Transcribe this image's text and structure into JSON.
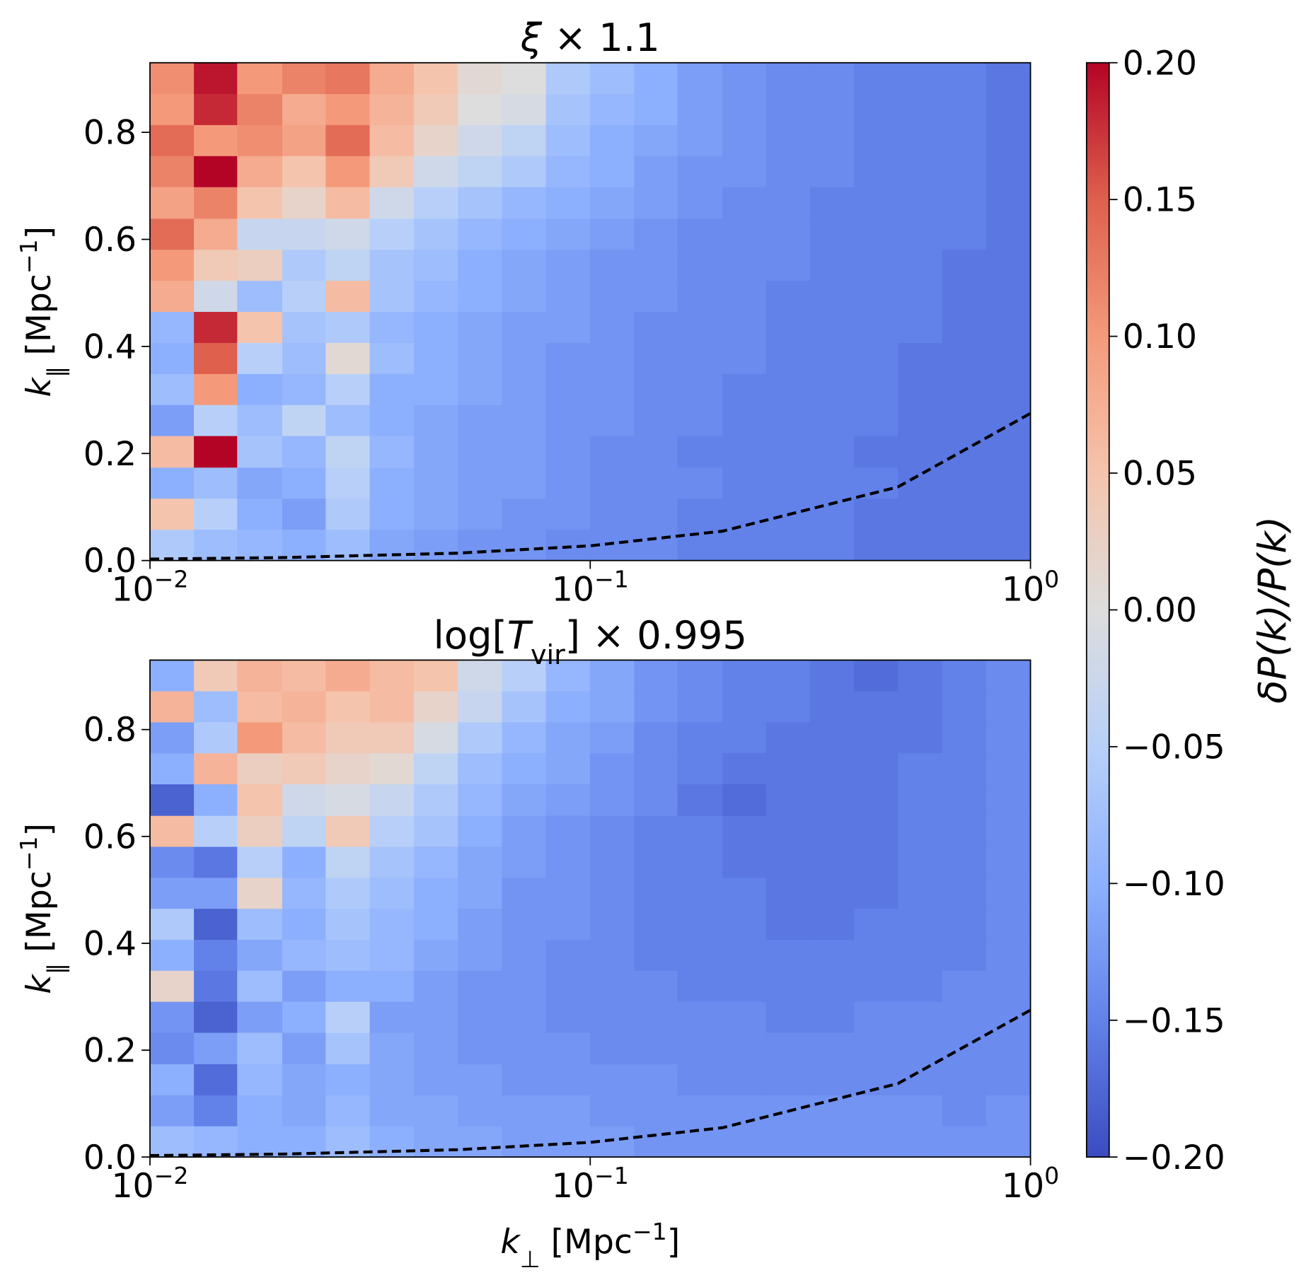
{
  "chart_data": [
    {
      "type": "heatmap",
      "title": {
        "var": "ξ",
        "post": " × 1.1"
      },
      "y_label": {
        "var": "k",
        "sub": "∥",
        "unit": " [Mpc",
        "exp": "−1",
        "close": "]"
      },
      "xlim": [
        0.01,
        1
      ],
      "ylim": [
        0,
        0.93
      ],
      "log_x": true,
      "xticks": [
        {
          "value": 0.01,
          "base": "10",
          "exponent": "−2"
        },
        {
          "value": 0.1,
          "base": "10",
          "exponent": "−1"
        },
        {
          "value": 1,
          "base": "10",
          "exponent": "0"
        }
      ],
      "yticks": [
        {
          "value": 0,
          "label": "0.0"
        },
        0.2,
        0.4,
        0.6,
        0.8
      ],
      "x_bins": [
        0.01,
        0.0126,
        0.0158,
        0.02,
        0.0251,
        0.0316,
        0.0398,
        0.0501,
        0.0631,
        0.0794,
        0.1,
        0.126,
        0.158,
        0.2,
        0.251,
        0.316,
        0.398,
        0.501,
        0.631,
        0.794,
        1
      ],
      "y_bins": [
        0,
        0.058,
        0.116,
        0.174,
        0.233,
        0.291,
        0.349,
        0.407,
        0.465,
        0.523,
        0.581,
        0.639,
        0.698,
        0.756,
        0.814,
        0.872,
        0.93
      ],
      "z": [
        [
          -0.06,
          -0.08,
          -0.09,
          -0.1,
          -0.08,
          -0.11,
          -0.12,
          -0.13,
          -0.13,
          -0.14,
          -0.14,
          -0.14,
          -0.15,
          -0.15,
          -0.15,
          -0.15,
          -0.16,
          -0.16,
          -0.16,
          -0.16
        ],
        [
          0.05,
          -0.05,
          -0.1,
          -0.12,
          -0.06,
          -0.1,
          -0.11,
          -0.12,
          -0.13,
          -0.13,
          -0.14,
          -0.14,
          -0.15,
          -0.15,
          -0.15,
          -0.15,
          -0.16,
          -0.16,
          -0.16,
          -0.16
        ],
        [
          -0.1,
          -0.08,
          -0.11,
          -0.1,
          -0.05,
          -0.1,
          -0.11,
          -0.12,
          -0.12,
          -0.13,
          -0.14,
          -0.14,
          -0.14,
          -0.15,
          -0.15,
          -0.15,
          -0.15,
          -0.16,
          -0.16,
          -0.16
        ],
        [
          0.06,
          0.2,
          -0.07,
          -0.09,
          -0.04,
          -0.09,
          -0.11,
          -0.12,
          -0.12,
          -0.13,
          -0.14,
          -0.14,
          -0.15,
          -0.15,
          -0.15,
          -0.15,
          -0.16,
          -0.16,
          -0.16,
          -0.16
        ],
        [
          -0.12,
          -0.05,
          -0.08,
          -0.04,
          -0.08,
          -0.1,
          -0.11,
          -0.12,
          -0.12,
          -0.13,
          -0.13,
          -0.14,
          -0.14,
          -0.15,
          -0.15,
          -0.15,
          -0.15,
          -0.16,
          -0.16,
          -0.16
        ],
        [
          -0.08,
          0.1,
          -0.1,
          -0.09,
          -0.05,
          -0.1,
          -0.1,
          -0.11,
          -0.12,
          -0.13,
          -0.13,
          -0.14,
          -0.14,
          -0.15,
          -0.15,
          -0.15,
          -0.15,
          -0.16,
          -0.16,
          -0.16
        ],
        [
          -0.1,
          0.15,
          -0.05,
          -0.08,
          0.01,
          -0.08,
          -0.1,
          -0.11,
          -0.12,
          -0.13,
          -0.13,
          -0.14,
          -0.14,
          -0.14,
          -0.15,
          -0.15,
          -0.15,
          -0.16,
          -0.16,
          -0.16
        ],
        [
          -0.09,
          0.18,
          0.05,
          -0.07,
          -0.06,
          -0.09,
          -0.1,
          -0.11,
          -0.12,
          -0.12,
          -0.13,
          -0.14,
          -0.14,
          -0.14,
          -0.15,
          -0.15,
          -0.15,
          -0.15,
          -0.16,
          -0.16
        ],
        [
          0.08,
          -0.02,
          -0.08,
          -0.05,
          0.06,
          -0.07,
          -0.09,
          -0.1,
          -0.11,
          -0.12,
          -0.13,
          -0.13,
          -0.14,
          -0.14,
          -0.15,
          -0.15,
          -0.15,
          -0.15,
          -0.16,
          -0.16
        ],
        [
          0.1,
          0.04,
          0.03,
          -0.06,
          -0.04,
          -0.07,
          -0.08,
          -0.1,
          -0.11,
          -0.12,
          -0.13,
          -0.13,
          -0.14,
          -0.14,
          -0.14,
          -0.15,
          -0.15,
          -0.15,
          -0.16,
          -0.16
        ],
        [
          0.14,
          0.08,
          -0.03,
          -0.03,
          -0.02,
          -0.05,
          -0.07,
          -0.09,
          -0.1,
          -0.11,
          -0.12,
          -0.13,
          -0.14,
          -0.14,
          -0.14,
          -0.15,
          -0.15,
          -0.15,
          -0.15,
          -0.16
        ],
        [
          0.09,
          0.12,
          0.05,
          0.02,
          0.06,
          -0.02,
          -0.05,
          -0.07,
          -0.09,
          -0.1,
          -0.11,
          -0.12,
          -0.13,
          -0.14,
          -0.14,
          -0.15,
          -0.15,
          -0.15,
          -0.15,
          -0.16
        ],
        [
          0.12,
          0.2,
          0.08,
          0.05,
          0.1,
          0.04,
          -0.02,
          -0.04,
          -0.06,
          -0.09,
          -0.1,
          -0.12,
          -0.13,
          -0.13,
          -0.14,
          -0.14,
          -0.15,
          -0.15,
          -0.15,
          -0.16
        ],
        [
          0.14,
          0.1,
          0.11,
          0.09,
          0.14,
          0.06,
          0.02,
          -0.02,
          -0.04,
          -0.08,
          -0.1,
          -0.11,
          -0.12,
          -0.13,
          -0.14,
          -0.14,
          -0.15,
          -0.15,
          -0.15,
          -0.16
        ],
        [
          0.1,
          0.18,
          0.12,
          0.08,
          0.1,
          0.07,
          0.04,
          0,
          -0.01,
          -0.07,
          -0.09,
          -0.1,
          -0.12,
          -0.13,
          -0.14,
          -0.14,
          -0.15,
          -0.15,
          -0.15,
          -0.16
        ],
        [
          0.11,
          0.19,
          0.1,
          0.12,
          0.13,
          0.08,
          0.05,
          0.01,
          0,
          -0.06,
          -0.08,
          -0.1,
          -0.12,
          -0.13,
          -0.14,
          -0.14,
          -0.15,
          -0.15,
          -0.15,
          -0.16
        ]
      ],
      "line": {
        "x": [
          0.01,
          0.02,
          0.05,
          0.1,
          0.2,
          0.5,
          1
        ],
        "values": [
          0.00275,
          0.0055,
          0.01375,
          0.0275,
          0.055,
          0.1375,
          0.275
        ],
        "color": "#000000",
        "style": "dashed"
      }
    },
    {
      "type": "heatmap",
      "title": {
        "pre": "log[",
        "var": "T",
        "sub": "vir",
        "post": "] × 0.995"
      },
      "x_label": {
        "var": "k",
        "sub": "⊥",
        "unit": " [Mpc",
        "exp": "−1",
        "close": "]"
      },
      "y_label": {
        "var": "k",
        "sub": "∥",
        "unit": " [Mpc",
        "exp": "−1",
        "close": "]"
      },
      "xlim": [
        0.01,
        1
      ],
      "ylim": [
        0,
        0.93
      ],
      "log_x": true,
      "xticks": [
        {
          "value": 0.01,
          "base": "10",
          "exponent": "−2"
        },
        {
          "value": 0.1,
          "base": "10",
          "exponent": "−1"
        },
        {
          "value": 1,
          "base": "10",
          "exponent": "0"
        }
      ],
      "yticks": [
        {
          "value": 0,
          "label": "0.0"
        },
        0.2,
        0.4,
        0.6,
        0.8
      ],
      "x_bins": [
        0.01,
        0.0126,
        0.0158,
        0.02,
        0.0251,
        0.0316,
        0.0398,
        0.0501,
        0.0631,
        0.0794,
        0.1,
        0.126,
        0.158,
        0.2,
        0.251,
        0.316,
        0.398,
        0.501,
        0.631,
        0.794,
        1
      ],
      "y_bins": [
        0,
        0.058,
        0.116,
        0.174,
        0.233,
        0.291,
        0.349,
        0.407,
        0.465,
        0.523,
        0.581,
        0.639,
        0.698,
        0.756,
        0.814,
        0.872,
        0.93
      ],
      "z": [
        [
          -0.08,
          -0.09,
          -0.1,
          -0.1,
          -0.08,
          -0.1,
          -0.11,
          -0.11,
          -0.12,
          -0.12,
          -0.12,
          -0.13,
          -0.13,
          -0.13,
          -0.13,
          -0.13,
          -0.13,
          -0.13,
          -0.13,
          -0.13
        ],
        [
          -0.12,
          -0.15,
          -0.1,
          -0.11,
          -0.09,
          -0.11,
          -0.11,
          -0.12,
          -0.12,
          -0.12,
          -0.13,
          -0.13,
          -0.13,
          -0.13,
          -0.13,
          -0.13,
          -0.13,
          -0.13,
          -0.14,
          -0.13
        ],
        [
          -0.1,
          -0.17,
          -0.09,
          -0.11,
          -0.1,
          -0.11,
          -0.12,
          -0.12,
          -0.13,
          -0.13,
          -0.13,
          -0.13,
          -0.14,
          -0.14,
          -0.14,
          -0.14,
          -0.14,
          -0.14,
          -0.14,
          -0.14
        ],
        [
          -0.14,
          -0.12,
          -0.08,
          -0.12,
          -0.07,
          -0.11,
          -0.12,
          -0.13,
          -0.13,
          -0.13,
          -0.14,
          -0.14,
          -0.14,
          -0.14,
          -0.14,
          -0.14,
          -0.14,
          -0.14,
          -0.14,
          -0.14
        ],
        [
          -0.13,
          -0.18,
          -0.12,
          -0.1,
          -0.05,
          -0.12,
          -0.12,
          -0.13,
          -0.13,
          -0.14,
          -0.14,
          -0.14,
          -0.14,
          -0.14,
          -0.15,
          -0.15,
          -0.14,
          -0.14,
          -0.14,
          -0.14
        ],
        [
          0.02,
          -0.16,
          -0.08,
          -0.12,
          -0.1,
          -0.1,
          -0.12,
          -0.13,
          -0.13,
          -0.14,
          -0.14,
          -0.14,
          -0.15,
          -0.15,
          -0.15,
          -0.15,
          -0.15,
          -0.15,
          -0.14,
          -0.14
        ],
        [
          -0.1,
          -0.15,
          -0.11,
          -0.09,
          -0.08,
          -0.09,
          -0.11,
          -0.12,
          -0.13,
          -0.14,
          -0.14,
          -0.15,
          -0.15,
          -0.15,
          -0.15,
          -0.15,
          -0.15,
          -0.15,
          -0.15,
          -0.14
        ],
        [
          -0.06,
          -0.18,
          -0.08,
          -0.1,
          -0.07,
          -0.09,
          -0.1,
          -0.12,
          -0.13,
          -0.13,
          -0.14,
          -0.15,
          -0.15,
          -0.15,
          -0.16,
          -0.16,
          -0.15,
          -0.15,
          -0.15,
          -0.14
        ],
        [
          -0.12,
          -0.12,
          0.02,
          -0.09,
          -0.06,
          -0.08,
          -0.1,
          -0.11,
          -0.13,
          -0.13,
          -0.14,
          -0.15,
          -0.15,
          -0.15,
          -0.16,
          -0.16,
          -0.16,
          -0.15,
          -0.15,
          -0.14
        ],
        [
          -0.14,
          -0.16,
          -0.05,
          -0.1,
          -0.04,
          -0.07,
          -0.09,
          -0.11,
          -0.12,
          -0.13,
          -0.14,
          -0.15,
          -0.15,
          -0.16,
          -0.16,
          -0.16,
          -0.16,
          -0.15,
          -0.15,
          -0.14
        ],
        [
          0.06,
          -0.05,
          0.03,
          -0.04,
          0.04,
          -0.05,
          -0.07,
          -0.1,
          -0.12,
          -0.13,
          -0.14,
          -0.15,
          -0.15,
          -0.16,
          -0.16,
          -0.16,
          -0.16,
          -0.15,
          -0.15,
          -0.14
        ],
        [
          -0.18,
          -0.1,
          0.05,
          -0.02,
          -0.01,
          -0.03,
          -0.06,
          -0.09,
          -0.11,
          -0.12,
          -0.13,
          -0.14,
          -0.16,
          -0.17,
          -0.16,
          -0.16,
          -0.16,
          -0.15,
          -0.15,
          -0.14
        ],
        [
          -0.1,
          0.07,
          0.03,
          0.04,
          0.02,
          0.01,
          -0.04,
          -0.08,
          -0.1,
          -0.11,
          -0.13,
          -0.14,
          -0.15,
          -0.16,
          -0.16,
          -0.16,
          -0.16,
          -0.15,
          -0.15,
          -0.14
        ],
        [
          -0.12,
          -0.06,
          0.1,
          0.06,
          0.04,
          0.04,
          -0.01,
          -0.06,
          -0.09,
          -0.11,
          -0.12,
          -0.14,
          -0.15,
          -0.15,
          -0.16,
          -0.16,
          -0.16,
          -0.16,
          -0.15,
          -0.14
        ],
        [
          0.07,
          -0.08,
          0.06,
          0.07,
          0.05,
          0.06,
          0.02,
          -0.03,
          -0.07,
          -0.1,
          -0.11,
          -0.13,
          -0.14,
          -0.15,
          -0.15,
          -0.16,
          -0.16,
          -0.16,
          -0.15,
          -0.14
        ],
        [
          -0.1,
          0.04,
          0.07,
          0.06,
          0.08,
          0.06,
          0.05,
          -0.02,
          -0.05,
          -0.09,
          -0.11,
          -0.13,
          -0.14,
          -0.15,
          -0.15,
          -0.16,
          -0.17,
          -0.16,
          -0.15,
          -0.14
        ]
      ],
      "line": {
        "x": [
          0.01,
          0.02,
          0.05,
          0.1,
          0.2,
          0.5,
          1
        ],
        "values": [
          0.00275,
          0.0055,
          0.01375,
          0.0275,
          0.055,
          0.1375,
          0.275
        ],
        "color": "#000000",
        "style": "dashed"
      }
    }
  ],
  "colorbar": {
    "colormap": "coolwarm",
    "label": "δP(k)/P(k)",
    "lim": [
      -0.2,
      0.2
    ],
    "ticks": [
      {
        "value": -0.2,
        "label": "−0.20"
      },
      {
        "value": -0.15,
        "label": "−0.15"
      },
      {
        "value": -0.1,
        "label": "−0.10"
      },
      {
        "value": -0.05,
        "label": "−0.05"
      },
      {
        "value": 0,
        "label": "0.00"
      },
      {
        "value": 0.05,
        "label": "0.05"
      },
      {
        "value": 0.1,
        "label": "0.10"
      },
      {
        "value": 0.15,
        "label": "0.15"
      },
      {
        "value": 0.2,
        "label": "0.20"
      }
    ]
  }
}
